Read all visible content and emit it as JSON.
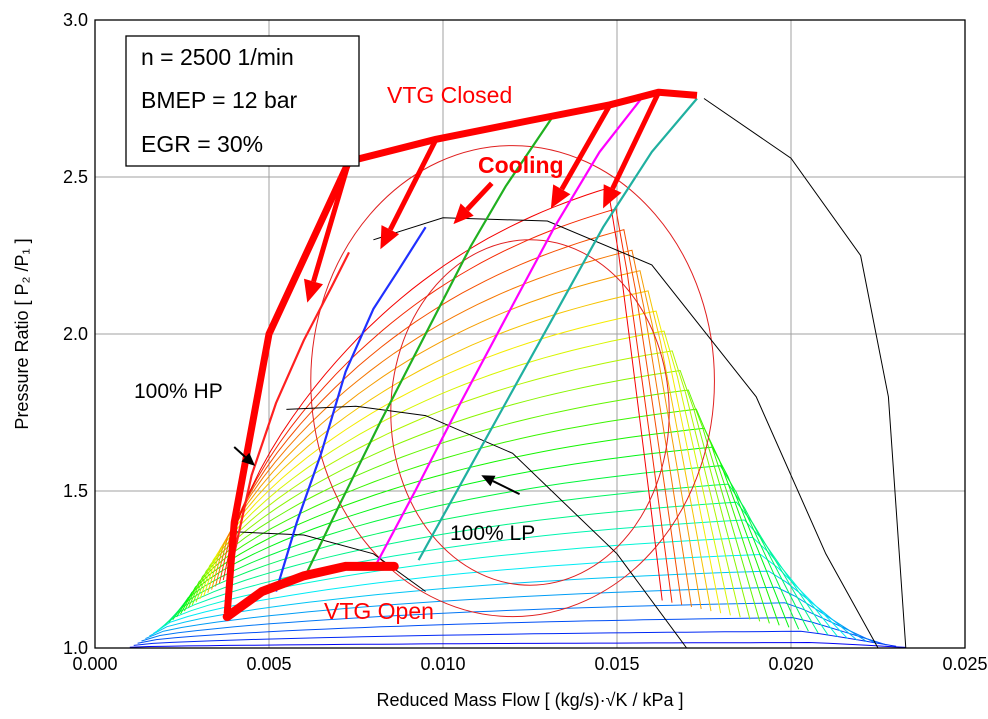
{
  "chart_data": {
    "type": "line",
    "title": "",
    "xlabel": "Reduced Mass Flow  [ (kg/s)·√K / kPa ]",
    "ylabel": "Pressure Ratio  [ P₂ /P₁ ]",
    "xlim": [
      0.0,
      0.025
    ],
    "ylim": [
      1.0,
      3.0
    ],
    "xticks": [
      "0.000",
      "0.005",
      "0.010",
      "0.015",
      "0.020",
      "0.025"
    ],
    "yticks": [
      "1.0",
      "1.5",
      "2.0",
      "2.5",
      "3.0"
    ],
    "grid": true,
    "info_box": [
      "n = 2500 1/min",
      "BMEP = 12 bar",
      "EGR = 30%"
    ],
    "annotations": {
      "vtg_closed": "VTG Closed",
      "cooling": "Cooling",
      "vtg_open": "VTG Open",
      "hp": "100% HP",
      "lp": "100% LP"
    },
    "colors": {
      "operating_line": "#ff0000",
      "hp_line": "#ff2020",
      "blue_line": "#2030ff",
      "green_line": "#20b020",
      "magenta_line": "#ff00ff",
      "teal_line": "#20b0a0",
      "speed_lines": "#000000"
    },
    "operating_lines": [
      {
        "x": [
          0.0038,
          0.004,
          0.0045,
          0.0052,
          0.006,
          0.0068,
          0.0073
        ],
        "y": [
          1.11,
          1.3,
          1.55,
          1.78,
          1.98,
          2.15,
          2.26
        ]
      },
      {
        "x": [
          0.0052,
          0.0058,
          0.0065,
          0.0072,
          0.008,
          0.0087,
          0.0095
        ],
        "y": [
          1.18,
          1.4,
          1.62,
          1.88,
          2.08,
          2.2,
          2.34
        ]
      },
      {
        "x": [
          0.006,
          0.007,
          0.0082,
          0.0095,
          0.0108,
          0.0118,
          0.0132
        ],
        "y": [
          1.22,
          1.45,
          1.72,
          2.0,
          2.28,
          2.47,
          2.7
        ]
      },
      {
        "x": [
          0.008,
          0.0092,
          0.0105,
          0.0118,
          0.0132,
          0.0145,
          0.0157
        ],
        "y": [
          1.25,
          1.5,
          1.78,
          2.05,
          2.34,
          2.58,
          2.75
        ]
      },
      {
        "x": [
          0.0093,
          0.0105,
          0.0118,
          0.0132,
          0.0146,
          0.016,
          0.0173
        ],
        "y": [
          1.28,
          1.52,
          1.78,
          2.06,
          2.34,
          2.58,
          2.75
        ]
      }
    ],
    "vtg_closed_path": {
      "x": [
        0.0038,
        0.004,
        0.005,
        0.0073,
        0.0098,
        0.0125,
        0.0148,
        0.0162,
        0.0173
      ],
      "y": [
        1.11,
        1.4,
        2.0,
        2.55,
        2.62,
        2.68,
        2.73,
        2.77,
        2.76
      ]
    },
    "vtg_open_path": {
      "x": [
        0.0038,
        0.0048,
        0.006,
        0.0072,
        0.0086
      ],
      "y": [
        1.1,
        1.18,
        1.23,
        1.26,
        1.26
      ]
    },
    "speed_lines": [
      {
        "x": [
          0.004,
          0.006,
          0.008,
          0.0095
        ],
        "y": [
          1.37,
          1.36,
          1.3,
          1.18
        ]
      },
      {
        "x": [
          0.0055,
          0.0075,
          0.0095,
          0.012,
          0.015,
          0.017
        ],
        "y": [
          1.76,
          1.77,
          1.74,
          1.62,
          1.3,
          1.0
        ]
      },
      {
        "x": [
          0.008,
          0.01,
          0.013,
          0.016,
          0.019,
          0.021,
          0.0225
        ],
        "y": [
          2.3,
          2.37,
          2.36,
          2.22,
          1.8,
          1.3,
          1.0
        ]
      },
      {
        "x": [
          0.0175,
          0.02,
          0.022,
          0.0228,
          0.0233
        ],
        "y": [
          2.75,
          2.56,
          2.25,
          1.8,
          1.0
        ]
      }
    ]
  }
}
